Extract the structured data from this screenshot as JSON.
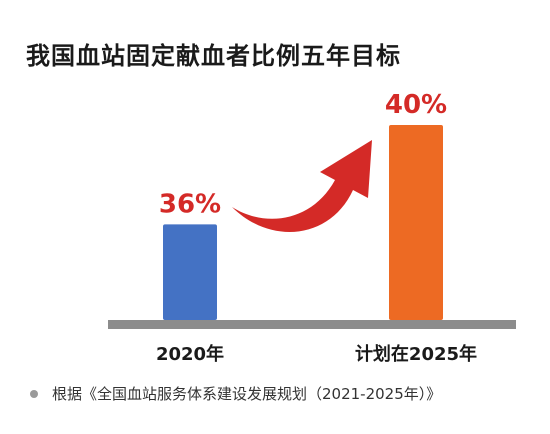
{
  "title": "我国血站固定献血者比例五年目标",
  "footnote": "根据《全国血站服务体系建设发展规划（2021-2025年）》",
  "colors": {
    "bar_2020": "#4472c4",
    "bar_2025": "#ed6a23",
    "value_label": "#d42a27",
    "arrow": "#d42a27",
    "baseline": "#8c8c8c",
    "bullet": "#9a9a9a"
  },
  "chart_data": {
    "type": "bar",
    "categories": [
      "2020年",
      "计划在2025年"
    ],
    "values": [
      36,
      40
    ],
    "value_labels": [
      "36%",
      "40%"
    ],
    "title": "我国血站固定献血者比例五年目标",
    "xlabel": "",
    "ylabel": "",
    "grid": false,
    "annotations": [
      "arrow-from-2020-to-2025"
    ]
  }
}
